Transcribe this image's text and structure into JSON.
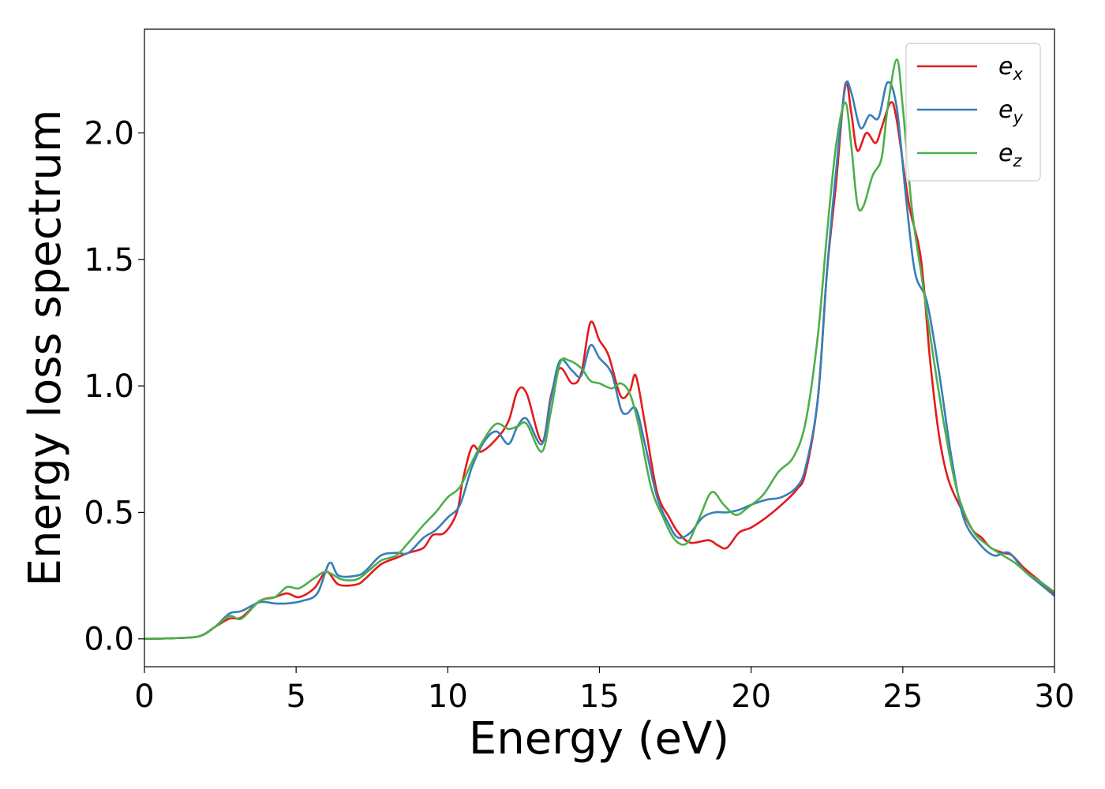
{
  "chart_data": {
    "type": "line",
    "title": "",
    "xlabel": "Energy (eV)",
    "ylabel": "Energy loss spectrum",
    "xlim": [
      0,
      30
    ],
    "ylim": [
      -0.11,
      2.41
    ],
    "x_ticks": [
      0,
      5,
      10,
      15,
      20,
      25,
      30
    ],
    "x_tick_labels": [
      "0",
      "5",
      "10",
      "15",
      "20",
      "25",
      "30"
    ],
    "y_ticks": [
      0.0,
      0.5,
      1.0,
      1.5,
      2.0
    ],
    "y_tick_labels": [
      "0.0",
      "0.5",
      "1.0",
      "1.5",
      "2.0"
    ],
    "grid": false,
    "legend_position": "top-right",
    "series": [
      {
        "name": "e_x",
        "label_base": "e",
        "label_sub": "x",
        "color": "#e41a1c",
        "points": [
          [
            0,
            0
          ],
          [
            1,
            0.003
          ],
          [
            1.8,
            0.01
          ],
          [
            2.3,
            0.045
          ],
          [
            2.8,
            0.08
          ],
          [
            3.2,
            0.085
          ],
          [
            3.8,
            0.15
          ],
          [
            4.3,
            0.165
          ],
          [
            4.7,
            0.18
          ],
          [
            5.1,
            0.165
          ],
          [
            5.6,
            0.2
          ],
          [
            6,
            0.265
          ],
          [
            6.4,
            0.215
          ],
          [
            7,
            0.215
          ],
          [
            7.3,
            0.24
          ],
          [
            7.8,
            0.295
          ],
          [
            8.3,
            0.32
          ],
          [
            8.7,
            0.34
          ],
          [
            9.2,
            0.36
          ],
          [
            9.5,
            0.41
          ],
          [
            9.9,
            0.42
          ],
          [
            10.3,
            0.5
          ],
          [
            10.5,
            0.63
          ],
          [
            10.8,
            0.76
          ],
          [
            11.1,
            0.74
          ],
          [
            11.6,
            0.79
          ],
          [
            12,
            0.86
          ],
          [
            12.3,
            0.98
          ],
          [
            12.6,
            0.97
          ],
          [
            13.1,
            0.78
          ],
          [
            13.4,
            0.96
          ],
          [
            13.7,
            1.07
          ],
          [
            14.1,
            1.01
          ],
          [
            14.4,
            1.05
          ],
          [
            14.7,
            1.25
          ],
          [
            15,
            1.18
          ],
          [
            15.3,
            1.12
          ],
          [
            15.7,
            0.96
          ],
          [
            16,
            0.98
          ],
          [
            16.2,
            1.04
          ],
          [
            16.5,
            0.85
          ],
          [
            16.9,
            0.58
          ],
          [
            17.3,
            0.48
          ],
          [
            17.6,
            0.42
          ],
          [
            18,
            0.38
          ],
          [
            18.6,
            0.39
          ],
          [
            18.9,
            0.37
          ],
          [
            19.2,
            0.36
          ],
          [
            19.6,
            0.42
          ],
          [
            20,
            0.44
          ],
          [
            20.5,
            0.48
          ],
          [
            21,
            0.53
          ],
          [
            21.5,
            0.59
          ],
          [
            21.8,
            0.66
          ],
          [
            22.2,
            0.95
          ],
          [
            22.5,
            1.45
          ],
          [
            22.8,
            1.8
          ],
          [
            23.1,
            2.19
          ],
          [
            23.3,
            2.08
          ],
          [
            23.5,
            1.93
          ],
          [
            23.8,
            2.0
          ],
          [
            24.1,
            1.96
          ],
          [
            24.3,
            2.02
          ],
          [
            24.6,
            2.12
          ],
          [
            24.8,
            2.05
          ],
          [
            25.2,
            1.72
          ],
          [
            25.6,
            1.5
          ],
          [
            25.9,
            1.1
          ],
          [
            26.2,
            0.8
          ],
          [
            26.5,
            0.63
          ],
          [
            26.9,
            0.52
          ],
          [
            27.3,
            0.43
          ],
          [
            27.6,
            0.4
          ],
          [
            27.9,
            0.36
          ],
          [
            28.3,
            0.34
          ],
          [
            28.6,
            0.33
          ],
          [
            29,
            0.28
          ],
          [
            29.5,
            0.23
          ],
          [
            30,
            0.175
          ]
        ]
      },
      {
        "name": "e_y",
        "label_base": "e",
        "label_sub": "y",
        "color": "#377eb8",
        "points": [
          [
            0,
            0
          ],
          [
            1,
            0.003
          ],
          [
            1.8,
            0.01
          ],
          [
            2.3,
            0.045
          ],
          [
            2.8,
            0.1
          ],
          [
            3.2,
            0.11
          ],
          [
            3.8,
            0.145
          ],
          [
            4.3,
            0.14
          ],
          [
            4.7,
            0.14
          ],
          [
            5.2,
            0.15
          ],
          [
            5.7,
            0.18
          ],
          [
            6.1,
            0.3
          ],
          [
            6.4,
            0.25
          ],
          [
            7,
            0.25
          ],
          [
            7.3,
            0.27
          ],
          [
            7.8,
            0.33
          ],
          [
            8.3,
            0.34
          ],
          [
            8.7,
            0.34
          ],
          [
            9.2,
            0.4
          ],
          [
            9.6,
            0.43
          ],
          [
            10,
            0.48
          ],
          [
            10.4,
            0.53
          ],
          [
            10.8,
            0.68
          ],
          [
            11.2,
            0.78
          ],
          [
            11.6,
            0.82
          ],
          [
            12,
            0.77
          ],
          [
            12.3,
            0.84
          ],
          [
            12.6,
            0.87
          ],
          [
            13.1,
            0.77
          ],
          [
            13.4,
            0.95
          ],
          [
            13.7,
            1.1
          ],
          [
            14.1,
            1.06
          ],
          [
            14.4,
            1.04
          ],
          [
            14.7,
            1.16
          ],
          [
            15,
            1.11
          ],
          [
            15.4,
            1.05
          ],
          [
            15.7,
            0.91
          ],
          [
            15.9,
            0.89
          ],
          [
            16.2,
            0.91
          ],
          [
            16.5,
            0.77
          ],
          [
            16.9,
            0.56
          ],
          [
            17.3,
            0.45
          ],
          [
            17.6,
            0.4
          ],
          [
            18,
            0.42
          ],
          [
            18.4,
            0.48
          ],
          [
            18.8,
            0.5
          ],
          [
            19.2,
            0.5
          ],
          [
            19.6,
            0.51
          ],
          [
            20,
            0.53
          ],
          [
            20.5,
            0.55
          ],
          [
            21,
            0.56
          ],
          [
            21.5,
            0.6
          ],
          [
            21.8,
            0.68
          ],
          [
            22.2,
            0.95
          ],
          [
            22.5,
            1.45
          ],
          [
            22.8,
            1.85
          ],
          [
            23.1,
            2.18
          ],
          [
            23.3,
            2.16
          ],
          [
            23.6,
            2.02
          ],
          [
            23.9,
            2.07
          ],
          [
            24.2,
            2.06
          ],
          [
            24.5,
            2.2
          ],
          [
            24.8,
            2.1
          ],
          [
            25.1,
            1.75
          ],
          [
            25.4,
            1.45
          ],
          [
            25.8,
            1.33
          ],
          [
            26.2,
            1.05
          ],
          [
            26.6,
            0.72
          ],
          [
            27,
            0.48
          ],
          [
            27.5,
            0.38
          ],
          [
            28,
            0.33
          ],
          [
            28.5,
            0.34
          ],
          [
            29,
            0.27
          ],
          [
            29.5,
            0.22
          ],
          [
            30,
            0.17
          ]
        ]
      },
      {
        "name": "e_z",
        "label_base": "e",
        "label_sub": "z",
        "color": "#4daf4a",
        "points": [
          [
            0,
            0
          ],
          [
            1,
            0.003
          ],
          [
            1.8,
            0.01
          ],
          [
            2.3,
            0.045
          ],
          [
            2.8,
            0.09
          ],
          [
            3.2,
            0.08
          ],
          [
            3.8,
            0.15
          ],
          [
            4.3,
            0.165
          ],
          [
            4.7,
            0.205
          ],
          [
            5.1,
            0.2
          ],
          [
            5.6,
            0.24
          ],
          [
            6,
            0.265
          ],
          [
            6.5,
            0.235
          ],
          [
            7,
            0.235
          ],
          [
            7.4,
            0.27
          ],
          [
            7.8,
            0.31
          ],
          [
            8.3,
            0.33
          ],
          [
            8.7,
            0.38
          ],
          [
            9.2,
            0.45
          ],
          [
            9.6,
            0.5
          ],
          [
            10,
            0.56
          ],
          [
            10.4,
            0.6
          ],
          [
            10.8,
            0.7
          ],
          [
            11.2,
            0.79
          ],
          [
            11.6,
            0.85
          ],
          [
            12,
            0.83
          ],
          [
            12.3,
            0.84
          ],
          [
            12.6,
            0.85
          ],
          [
            13.1,
            0.74
          ],
          [
            13.4,
            0.9
          ],
          [
            13.7,
            1.09
          ],
          [
            14,
            1.1
          ],
          [
            14.4,
            1.07
          ],
          [
            14.7,
            1.02
          ],
          [
            15,
            1.01
          ],
          [
            15.4,
            0.99
          ],
          [
            15.7,
            1.01
          ],
          [
            16,
            0.97
          ],
          [
            16.3,
            0.84
          ],
          [
            16.7,
            0.6
          ],
          [
            17.1,
            0.48
          ],
          [
            17.5,
            0.39
          ],
          [
            17.9,
            0.38
          ],
          [
            18.3,
            0.48
          ],
          [
            18.7,
            0.58
          ],
          [
            19.1,
            0.53
          ],
          [
            19.5,
            0.49
          ],
          [
            19.9,
            0.52
          ],
          [
            20.4,
            0.57
          ],
          [
            20.9,
            0.66
          ],
          [
            21.4,
            0.72
          ],
          [
            21.8,
            0.86
          ],
          [
            22.2,
            1.2
          ],
          [
            22.5,
            1.6
          ],
          [
            22.8,
            1.95
          ],
          [
            23.1,
            2.12
          ],
          [
            23.3,
            1.95
          ],
          [
            23.5,
            1.72
          ],
          [
            23.7,
            1.71
          ],
          [
            24,
            1.83
          ],
          [
            24.3,
            1.9
          ],
          [
            24.5,
            2.1
          ],
          [
            24.8,
            2.29
          ],
          [
            25,
            2.1
          ],
          [
            25.3,
            1.7
          ],
          [
            25.6,
            1.45
          ],
          [
            26,
            1.12
          ],
          [
            26.4,
            0.82
          ],
          [
            26.8,
            0.58
          ],
          [
            27.3,
            0.43
          ],
          [
            27.8,
            0.37
          ],
          [
            28.3,
            0.33
          ],
          [
            28.7,
            0.3
          ],
          [
            29.1,
            0.26
          ],
          [
            29.6,
            0.22
          ],
          [
            30,
            0.185
          ]
        ]
      }
    ]
  }
}
